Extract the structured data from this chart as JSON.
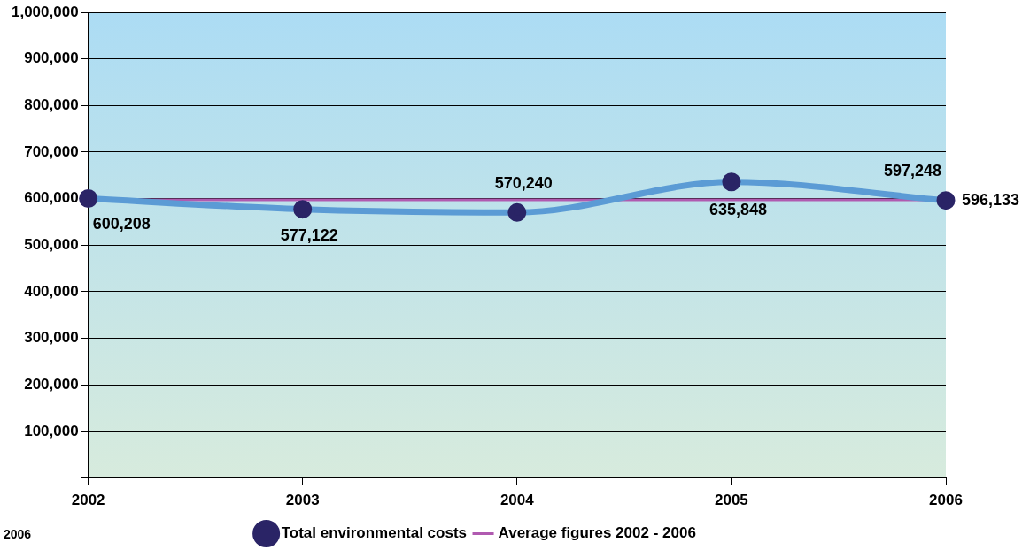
{
  "chart_data": {
    "type": "line",
    "categories": [
      "2002",
      "2003",
      "2004",
      "2005",
      "2006"
    ],
    "series": [
      {
        "name": "Total environmental costs",
        "color": "#5b9bd5",
        "values": [
          600208,
          577122,
          570240,
          635848,
          596133
        ],
        "value_labels": [
          "600,208",
          "577,122",
          "570,240",
          "635,848",
          "596,133"
        ],
        "marker": "circle"
      },
      {
        "name": "Average figures 2002 - 2006",
        "color": "#b05ab0",
        "values": [
          597248,
          597248,
          597248,
          597248,
          597248
        ],
        "value_labels": [
          null,
          null,
          null,
          null,
          "597,248"
        ],
        "marker": "none"
      }
    ],
    "ylim": [
      0,
      1000000
    ],
    "yticks": [
      {
        "value": 0,
        "label": null
      },
      {
        "value": 100000,
        "label": "100,000"
      },
      {
        "value": 200000,
        "label": "200,000"
      },
      {
        "value": 300000,
        "label": "300,000"
      },
      {
        "value": 400000,
        "label": "400,000"
      },
      {
        "value": 500000,
        "label": "500,000"
      },
      {
        "value": 600000,
        "label": "600,000"
      },
      {
        "value": 700000,
        "label": "700,000"
      },
      {
        "value": 800000,
        "label": "800,000"
      },
      {
        "value": 900000,
        "label": "900,000"
      },
      {
        "value": 1000000,
        "label": "1,000,000"
      }
    ],
    "grid": "y",
    "legend": "bottom",
    "annotations": [
      "2006"
    ]
  }
}
